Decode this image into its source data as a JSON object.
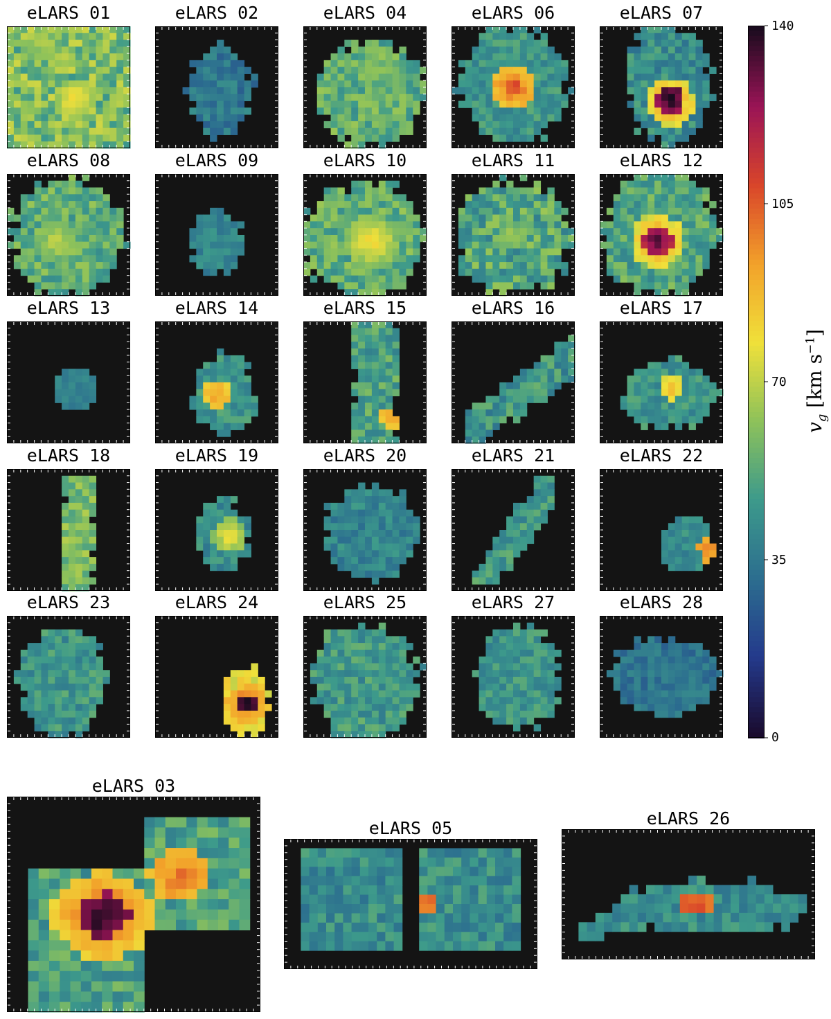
{
  "chart_data": {
    "type": "heatmap",
    "description_free": true,
    "colorbar": {
      "label_text": "v_g [km s^-1]",
      "label_var": "v",
      "label_sub": "g",
      "label_units": "[km s",
      "label_exp": "−1",
      "label_close": "]",
      "ticks": [
        "0",
        "35",
        "70",
        "105",
        "140"
      ],
      "range": [
        0,
        140
      ]
    },
    "panels": [
      {
        "id": "p01",
        "title": "eLARS 01"
      },
      {
        "id": "p02",
        "title": "eLARS 02"
      },
      {
        "id": "p04",
        "title": "eLARS 04"
      },
      {
        "id": "p06",
        "title": "eLARS 06"
      },
      {
        "id": "p07",
        "title": "eLARS 07"
      },
      {
        "id": "p08",
        "title": "eLARS 08"
      },
      {
        "id": "p09",
        "title": "eLARS 09"
      },
      {
        "id": "p10",
        "title": "eLARS 10"
      },
      {
        "id": "p11",
        "title": "eLARS 11"
      },
      {
        "id": "p12",
        "title": "eLARS 12"
      },
      {
        "id": "p13",
        "title": "eLARS 13"
      },
      {
        "id": "p14",
        "title": "eLARS 14"
      },
      {
        "id": "p15",
        "title": "eLARS 15"
      },
      {
        "id": "p16",
        "title": "eLARS 16"
      },
      {
        "id": "p17",
        "title": "eLARS 17"
      },
      {
        "id": "p18",
        "title": "eLARS 18"
      },
      {
        "id": "p19",
        "title": "eLARS 19"
      },
      {
        "id": "p20",
        "title": "eLARS 20"
      },
      {
        "id": "p21",
        "title": "eLARS 21"
      },
      {
        "id": "p22",
        "title": "eLARS 22"
      },
      {
        "id": "p23",
        "title": "eLARS 23"
      },
      {
        "id": "p24",
        "title": "eLARS 24"
      },
      {
        "id": "p25",
        "title": "eLARS 25"
      },
      {
        "id": "p27",
        "title": "eLARS 27"
      },
      {
        "id": "p28",
        "title": "eLARS 28"
      },
      {
        "id": "p03",
        "title": "eLARS 03"
      },
      {
        "id": "p05",
        "title": "eLARS 05"
      },
      {
        "id": "p26",
        "title": "eLARS 26"
      }
    ],
    "colors": {
      "background": "#141414",
      "colormap_stops": [
        "#1a0b2e",
        "#243a8c",
        "#2c6e8f",
        "#3d9a8b",
        "#8ec25a",
        "#f0e03a",
        "#f2a12a",
        "#d9452a",
        "#9a1456",
        "#1a0b1e"
      ]
    }
  }
}
